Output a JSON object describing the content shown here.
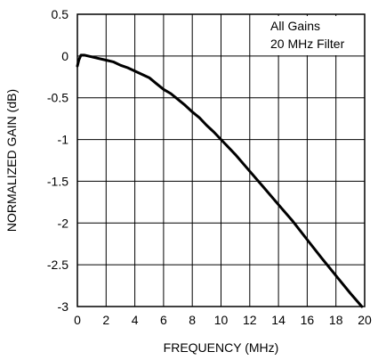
{
  "chart_data": {
    "type": "line",
    "xlabel": "FREQUENCY (MHz)",
    "ylabel": "NORMALIZED GAIN (dB)",
    "xlim": [
      0,
      20
    ],
    "ylim": [
      -3,
      0.5
    ],
    "x_ticks": [
      "0",
      "2",
      "4",
      "6",
      "8",
      "10",
      "12",
      "14",
      "16",
      "18",
      "20"
    ],
    "y_ticks": [
      "0.5",
      "0",
      "-0.5",
      "-1",
      "-1.5",
      "-2",
      "-2.5",
      "-3"
    ],
    "grid": true,
    "annotations": [
      "All Gains",
      "20 MHz Filter"
    ],
    "series": [
      {
        "x": [
          0,
          0.1,
          0.25,
          0.5,
          1,
          1.5,
          2,
          2.5,
          3,
          3.5,
          4,
          4.5,
          5,
          5.5,
          6,
          6.5,
          7,
          7.5,
          8,
          8.5,
          9,
          9.5,
          10,
          11,
          12,
          13,
          14,
          15,
          16,
          17,
          18,
          19,
          19.8
        ],
        "y": [
          -0.12,
          -0.05,
          0.01,
          0.01,
          -0.01,
          -0.03,
          -0.05,
          -0.07,
          -0.11,
          -0.14,
          -0.18,
          -0.22,
          -0.26,
          -0.33,
          -0.4,
          -0.45,
          -0.52,
          -0.59,
          -0.67,
          -0.74,
          -0.83,
          -0.91,
          -1.0,
          -1.18,
          -1.38,
          -1.58,
          -1.78,
          -1.98,
          -2.2,
          -2.42,
          -2.63,
          -2.84,
          -3.0
        ]
      }
    ]
  }
}
